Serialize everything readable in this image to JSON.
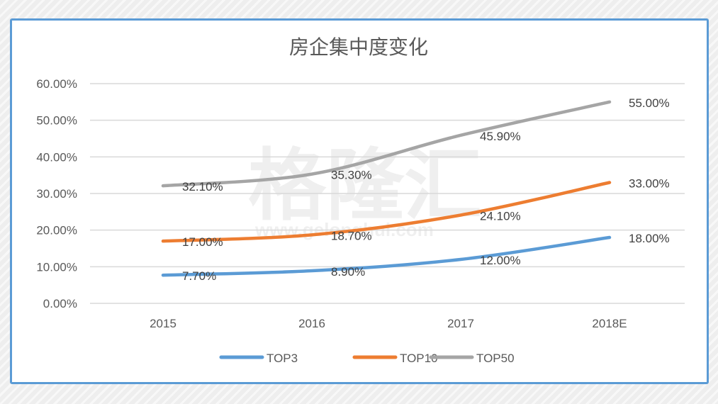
{
  "chart_data": {
    "type": "line",
    "title": "房企集中度变化",
    "categories": [
      "2015",
      "2016",
      "2017",
      "2018E"
    ],
    "ylim": [
      0,
      60
    ],
    "yticks": [
      "0.00%",
      "10.00%",
      "20.00%",
      "30.00%",
      "40.00%",
      "50.00%",
      "60.00%"
    ],
    "grid": true,
    "legend_position": "bottom",
    "smooth": true,
    "series": [
      {
        "name": "TOP3",
        "color": "#5b9bd5",
        "values": [
          7.7,
          8.9,
          12.0,
          18.0
        ],
        "labels": [
          "7.70%",
          "8.90%",
          "12.00%",
          "18.00%"
        ]
      },
      {
        "name": "TOP10",
        "color": "#ed7d31",
        "values": [
          17.0,
          18.7,
          24.1,
          33.0
        ],
        "labels": [
          "17.00%",
          "18.70%",
          "24.10%",
          "33.00%"
        ]
      },
      {
        "name": "TOP50",
        "color": "#a5a5a5",
        "values": [
          32.1,
          35.3,
          45.9,
          55.0
        ],
        "labels": [
          "32.10%",
          "35.30%",
          "45.90%",
          "55.00%"
        ]
      }
    ]
  },
  "watermark": {
    "logo": "格隆汇",
    "url": "www.gelonghui.com"
  }
}
